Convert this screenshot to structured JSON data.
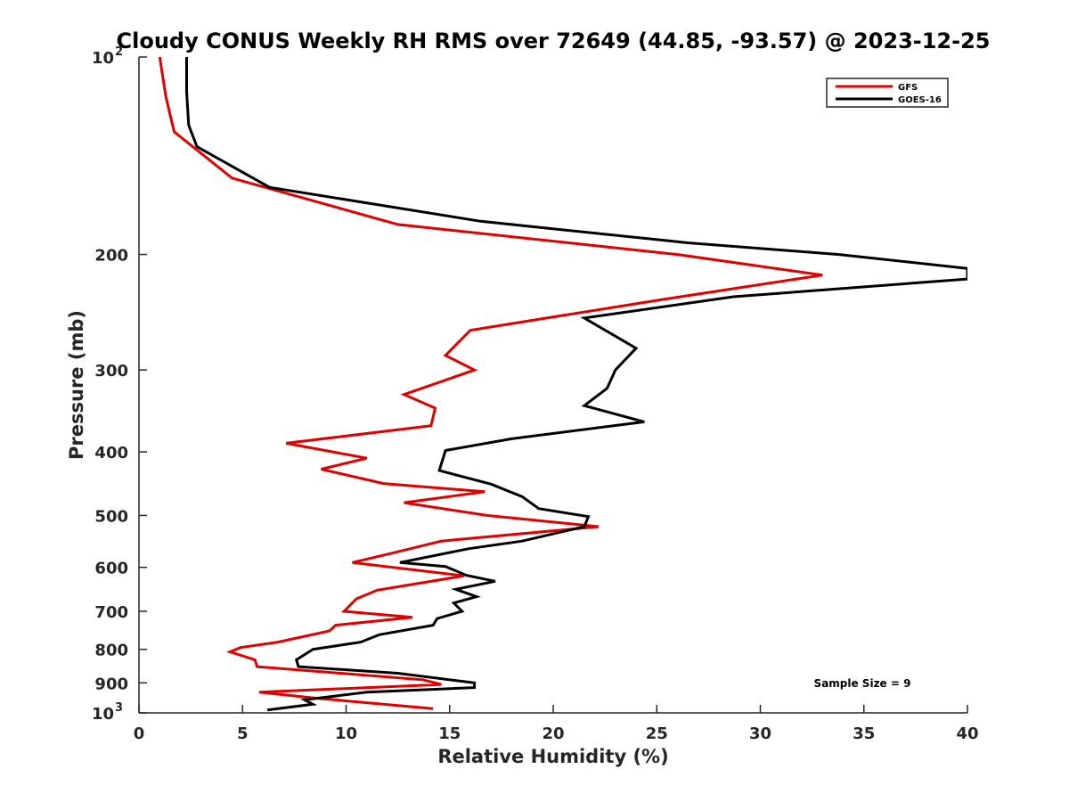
{
  "chart_data": {
    "type": "line",
    "title": "Cloudy CONUS Weekly RH RMS over 72649 (44.85, -93.57) @ 2023-12-25",
    "xlabel": "Relative Humidity (%)",
    "ylabel": "Pressure (mb)",
    "xlim": [
      0,
      40
    ],
    "ylim": [
      100,
      1000
    ],
    "y_scale": "log",
    "y_reversed": true,
    "grid": false,
    "legend_position": "top-right",
    "x_ticks": [
      0,
      5,
      10,
      15,
      20,
      25,
      30,
      35,
      40
    ],
    "x_tick_labels": [
      "0",
      "5",
      "10",
      "15",
      "20",
      "25",
      "30",
      "35",
      "40"
    ],
    "y_ticks": [
      {
        "value": 100,
        "base": "10",
        "exp": "2"
      },
      {
        "value": 200,
        "label": "200"
      },
      {
        "value": 300,
        "label": "300"
      },
      {
        "value": 400,
        "label": "400"
      },
      {
        "value": 500,
        "label": "500"
      },
      {
        "value": 600,
        "label": "600"
      },
      {
        "value": 700,
        "label": "700"
      },
      {
        "value": 800,
        "label": "800"
      },
      {
        "value": 900,
        "label": "900"
      },
      {
        "value": 1000,
        "base": "10",
        "exp": "3"
      }
    ],
    "annotation": "Sample Size = 9",
    "series": [
      {
        "name": "GFS",
        "color": "#e00000",
        "points": [
          [
            1.0,
            100
          ],
          [
            1.3,
            115
          ],
          [
            1.7,
            130
          ],
          [
            4.5,
            153
          ],
          [
            12.5,
            180
          ],
          [
            26.0,
            200
          ],
          [
            33.0,
            215
          ],
          [
            25.0,
            235
          ],
          [
            16.0,
            261
          ],
          [
            14.8,
            285
          ],
          [
            16.2,
            300
          ],
          [
            12.8,
            327
          ],
          [
            14.3,
            343
          ],
          [
            14.1,
            365
          ],
          [
            7.1,
            388
          ],
          [
            11.0,
            409
          ],
          [
            8.8,
            425
          ],
          [
            11.8,
            447
          ],
          [
            16.7,
            460
          ],
          [
            12.8,
            478
          ],
          [
            16.8,
            500
          ],
          [
            22.2,
            520
          ],
          [
            14.6,
            547
          ],
          [
            12.5,
            568
          ],
          [
            10.3,
            590
          ],
          [
            15.7,
            618
          ],
          [
            11.5,
            650
          ],
          [
            10.5,
            670
          ],
          [
            9.9,
            700
          ],
          [
            13.2,
            715
          ],
          [
            9.5,
            735
          ],
          [
            9.2,
            750
          ],
          [
            6.7,
            780
          ],
          [
            4.9,
            795
          ],
          [
            4.4,
            807
          ],
          [
            5.6,
            830
          ],
          [
            5.7,
            850
          ],
          [
            13.7,
            890
          ],
          [
            14.6,
            905
          ],
          [
            5.8,
            930
          ],
          [
            8.6,
            950
          ],
          [
            14.2,
            985
          ]
        ]
      },
      {
        "name": "GOES-16",
        "color": "#000000",
        "points": [
          [
            2.3,
            100
          ],
          [
            2.3,
            113
          ],
          [
            2.4,
            127
          ],
          [
            2.8,
            137
          ],
          [
            6.3,
            158
          ],
          [
            16.5,
            178
          ],
          [
            26.5,
            192
          ],
          [
            33.8,
            200
          ],
          [
            40.0,
            210
          ],
          [
            40.0,
            218
          ],
          [
            28.7,
            232
          ],
          [
            21.5,
            250
          ],
          [
            24.0,
            278
          ],
          [
            23.0,
            300
          ],
          [
            22.6,
            320
          ],
          [
            21.5,
            340
          ],
          [
            24.4,
            360
          ],
          [
            18.0,
            382
          ],
          [
            14.8,
            398
          ],
          [
            14.5,
            427
          ],
          [
            17.0,
            448
          ],
          [
            18.5,
            468
          ],
          [
            19.3,
            488
          ],
          [
            21.7,
            502
          ],
          [
            21.5,
            520
          ],
          [
            18.5,
            547
          ],
          [
            15.9,
            562
          ],
          [
            12.6,
            590
          ],
          [
            14.8,
            598
          ],
          [
            15.8,
            617
          ],
          [
            17.2,
            630
          ],
          [
            15.3,
            648
          ],
          [
            16.3,
            665
          ],
          [
            15.2,
            680
          ],
          [
            15.6,
            700
          ],
          [
            14.4,
            718
          ],
          [
            14.2,
            735
          ],
          [
            11.6,
            760
          ],
          [
            10.7,
            780
          ],
          [
            8.4,
            800
          ],
          [
            7.6,
            830
          ],
          [
            7.7,
            850
          ],
          [
            12.5,
            870
          ],
          [
            16.2,
            900
          ],
          [
            16.2,
            915
          ],
          [
            11.0,
            930
          ],
          [
            8.0,
            955
          ],
          [
            8.4,
            970
          ],
          [
            6.2,
            990
          ]
        ]
      }
    ]
  }
}
